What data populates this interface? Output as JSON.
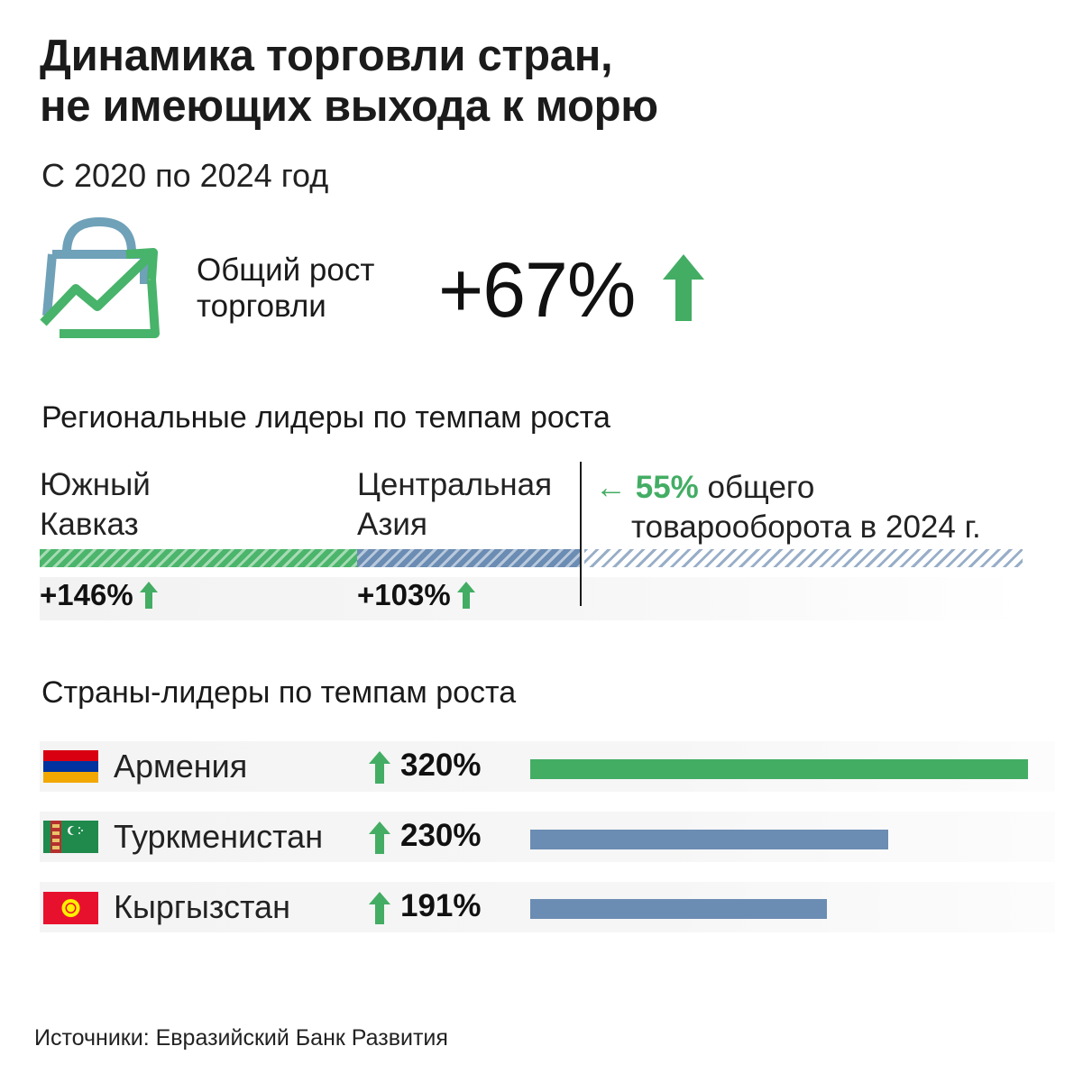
{
  "header": {
    "title_line1": "Динамика торговли стран,",
    "title_line2": "не имеющих выхода к морю",
    "subtitle": "С 2020 по 2024 год"
  },
  "hero": {
    "icon": "shopping-bag-growth-icon",
    "label_line1": "Общий рост",
    "label_line2": "торговли",
    "value": "+67%",
    "arrow_icon": "arrow-up-icon"
  },
  "regions": {
    "title": "Региональные лидеры по темпам роста",
    "items": [
      {
        "label_line1": "Южный",
        "label_line2": "Кавказ",
        "value": "+146%",
        "share_percent": 55
      },
      {
        "label_line1": "Центральная",
        "label_line2": "Азия",
        "value": "+103%"
      }
    ],
    "note_arrow": "←",
    "note_highlight": "55%",
    "note_text": "общего",
    "note_line2": "товарооборота в 2024 г."
  },
  "countries": {
    "title": "Страны-лидеры по темпам роста",
    "items": [
      {
        "name": "Армения",
        "value": "320%",
        "flag": "armenia-flag-icon"
      },
      {
        "name": "Туркменистан",
        "value": "230%",
        "flag": "turkmenistan-flag-icon"
      },
      {
        "name": "Кыргызстан",
        "value": "191%",
        "flag": "kyrgyzstan-flag-icon"
      }
    ]
  },
  "chart_data": [
    {
      "type": "bar",
      "categories": [
        "Южный Кавказ",
        "Центральная Азия"
      ],
      "values": [
        146,
        103
      ],
      "title": "Региональные лидеры по темпам роста",
      "unit": "%"
    },
    {
      "type": "bar",
      "categories": [
        "Армения",
        "Туркменистан",
        "Кыргызстан"
      ],
      "values": [
        320,
        230,
        191
      ],
      "title": "Страны-лидеры по темпам роста",
      "unit": "%"
    }
  ],
  "colors": {
    "green": "#43ad64",
    "blue": "#6b8cb3",
    "text": "#1a1a1a"
  },
  "source": "Источники: Евразийский Банк Развития"
}
